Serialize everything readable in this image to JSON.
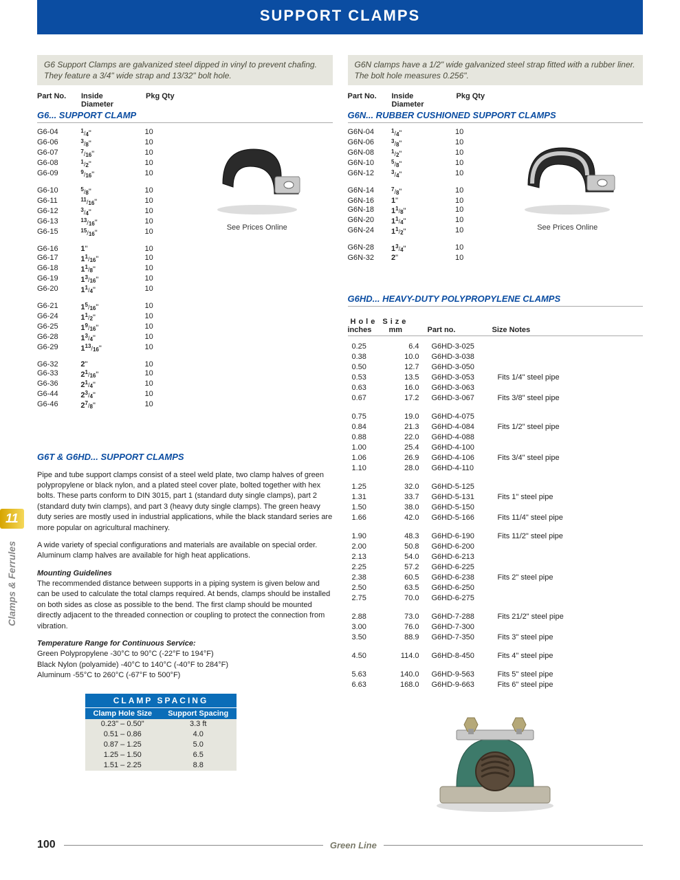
{
  "header": {
    "title": "SUPPORT CLAMPS"
  },
  "left": {
    "intro": "G6 Support Clamps are galvanized steel dipped in vinyl to prevent chafing. They feature a 3/4\" wide strap and 13/32\" bolt hole.",
    "headers": {
      "part": "Part No.",
      "diam_top": "Inside",
      "diam_bot": "Diameter",
      "qty": "Pkg Qty"
    },
    "section": "G6... SUPPORT CLAMP",
    "see_prices": "See Prices Online",
    "rows": [
      [
        {
          "part": "G6-04",
          "diam": {
            "w": "",
            "n": "1",
            "d": "4",
            "suf": "\""
          },
          "qty": "10"
        },
        {
          "part": "G6-06",
          "diam": {
            "w": "",
            "n": "3",
            "d": "8",
            "suf": "\""
          },
          "qty": "10"
        },
        {
          "part": "G6-07",
          "diam": {
            "w": "",
            "n": "7",
            "d": "16",
            "suf": "\""
          },
          "qty": "10"
        },
        {
          "part": "G6-08",
          "diam": {
            "w": "",
            "n": "1",
            "d": "2",
            "suf": "\""
          },
          "qty": "10"
        },
        {
          "part": "G6-09",
          "diam": {
            "w": "",
            "n": "9",
            "d": "16",
            "suf": "\""
          },
          "qty": "10"
        }
      ],
      [
        {
          "part": "G6-10",
          "diam": {
            "w": "",
            "n": "5",
            "d": "8",
            "suf": "\""
          },
          "qty": "10"
        },
        {
          "part": "G6-11",
          "diam": {
            "w": "",
            "n": "11",
            "d": "16",
            "suf": "\""
          },
          "qty": "10"
        },
        {
          "part": "G6-12",
          "diam": {
            "w": "",
            "n": "3",
            "d": "4",
            "suf": "\""
          },
          "qty": "10"
        },
        {
          "part": "G6-13",
          "diam": {
            "w": "",
            "n": "13",
            "d": "16",
            "suf": "\""
          },
          "qty": "10"
        },
        {
          "part": "G6-15",
          "diam": {
            "w": "",
            "n": "15",
            "d": "16",
            "suf": "\""
          },
          "qty": "10"
        }
      ],
      [
        {
          "part": "G6-16",
          "diam": {
            "w": "1",
            "n": "",
            "d": "",
            "suf": "\""
          },
          "qty": "10"
        },
        {
          "part": "G6-17",
          "diam": {
            "w": "1",
            "n": "1",
            "d": "16",
            "suf": "\""
          },
          "qty": "10"
        },
        {
          "part": "G6-18",
          "diam": {
            "w": "1",
            "n": "1",
            "d": "8",
            "suf": "\""
          },
          "qty": "10"
        },
        {
          "part": "G6-19",
          "diam": {
            "w": "1",
            "n": "3",
            "d": "16",
            "suf": "\""
          },
          "qty": "10"
        },
        {
          "part": "G6-20",
          "diam": {
            "w": "1",
            "n": "1",
            "d": "4",
            "suf": "\""
          },
          "qty": "10"
        }
      ],
      [
        {
          "part": "G6-21",
          "diam": {
            "w": "1",
            "n": "5",
            "d": "16",
            "suf": "\""
          },
          "qty": "10"
        },
        {
          "part": "G6-24",
          "diam": {
            "w": "1",
            "n": "1",
            "d": "2",
            "suf": "\""
          },
          "qty": "10"
        },
        {
          "part": "G6-25",
          "diam": {
            "w": "1",
            "n": "9",
            "d": "16",
            "suf": "\""
          },
          "qty": "10"
        },
        {
          "part": "G6-28",
          "diam": {
            "w": "1",
            "n": "3",
            "d": "4",
            "suf": "\""
          },
          "qty": "10"
        },
        {
          "part": "G6-29",
          "diam": {
            "w": "1",
            "n": "13",
            "d": "16",
            "suf": "\""
          },
          "qty": "10"
        }
      ],
      [
        {
          "part": "G6-32",
          "diam": {
            "w": "2",
            "n": "",
            "d": "",
            "suf": "\""
          },
          "qty": "10"
        },
        {
          "part": "G6-33",
          "diam": {
            "w": "2",
            "n": "1",
            "d": "16",
            "suf": "\""
          },
          "qty": "10"
        },
        {
          "part": "G6-36",
          "diam": {
            "w": "2",
            "n": "1",
            "d": "4",
            "suf": "\""
          },
          "qty": "10"
        },
        {
          "part": "G6-44",
          "diam": {
            "w": "2",
            "n": "3",
            "d": "4",
            "suf": "\""
          },
          "qty": "10"
        },
        {
          "part": "G6-46",
          "diam": {
            "w": "2",
            "n": "7",
            "d": "8",
            "suf": "\""
          },
          "qty": "10"
        }
      ]
    ],
    "article": {
      "title": "G6T & G6HD... SUPPORT CLAMPS",
      "p1": "Pipe and tube support clamps consist of a steel weld plate, two clamp halves of green polypropylene or black nylon, and a plated steel cover plate, bolted together with hex bolts. These parts conform to DIN 3015, part 1 (standard duty single clamps), part 2 (standard duty twin clamps), and part 3 (heavy duty single clamps). The green heavy duty series are mostly used in industrial applications, while the black standard series are more popular on agricultural machinery.",
      "p2": "A wide variety of special configurations and materials are available on special order. Aluminum clamp halves are available for high heat applications.",
      "mg_title": "Mounting Guidelines",
      "p3": "The recommended distance between supports in a piping system is given below and can be used to calculate the total clamps required. At bends, clamps should be installed on both sides as close as possible to the bend. The first clamp should be mounted directly adjacent to the threaded connection or coupling to protect the connection from vibration.",
      "tr_title": "Temperature Range for Continuous Service:",
      "tr1": "Green Polypropylene -30°C to 90°C (-22°F to 194°F)",
      "tr2": "Black Nylon (polyamide) -40°C to 140°C (-40°F to 284°F)",
      "tr3": "Aluminum -55°C to 260°C (-67°F to 500°F)"
    },
    "spacing": {
      "title": "CLAMP SPACING",
      "h1": "Clamp Hole Size",
      "h2": "Support Spacing",
      "rows": [
        {
          "a": "0.23\" – 0.50\"",
          "b": "3.3 ft"
        },
        {
          "a": "0.51  – 0.86",
          "b": "4.0"
        },
        {
          "a": "0.87  – 1.25",
          "b": "5.0"
        },
        {
          "a": "1.25  – 1.50",
          "b": "6.5"
        },
        {
          "a": "1.51  – 2.25",
          "b": "8.8"
        }
      ]
    }
  },
  "right": {
    "intro": "G6N clamps have a 1/2\" wide galvanized steel strap fitted with a rubber liner. The bolt hole measures 0.256\".",
    "headers": {
      "part": "Part No.",
      "diam_top": "Inside",
      "diam_bot": "Diameter",
      "qty": "Pkg Qty"
    },
    "section": "G6N... RUBBER CUSHIONED SUPPORT CLAMPS",
    "see_prices": "See Prices Online",
    "rows": [
      [
        {
          "part": "G6N-04",
          "diam": {
            "w": "",
            "n": "1",
            "d": "4",
            "suf": "\""
          },
          "qty": "10"
        },
        {
          "part": "G6N-06",
          "diam": {
            "w": "",
            "n": "3",
            "d": "8",
            "suf": "\""
          },
          "qty": "10"
        },
        {
          "part": "G6N-08",
          "diam": {
            "w": "",
            "n": "1",
            "d": "2",
            "suf": "\""
          },
          "qty": "10"
        },
        {
          "part": "G6N-10",
          "diam": {
            "w": "",
            "n": "5",
            "d": "8",
            "suf": "\""
          },
          "qty": "10"
        },
        {
          "part": "G6N-12",
          "diam": {
            "w": "",
            "n": "3",
            "d": "4",
            "suf": "\""
          },
          "qty": "10"
        }
      ],
      [
        {
          "part": "G6N-14",
          "diam": {
            "w": "",
            "n": "7",
            "d": "8",
            "suf": "\""
          },
          "qty": "10"
        },
        {
          "part": "G6N-16",
          "diam": {
            "w": "1",
            "n": "",
            "d": "",
            "suf": "\""
          },
          "qty": "10"
        },
        {
          "part": "G6N-18",
          "diam": {
            "w": "1",
            "n": "1",
            "d": "8",
            "suf": "\""
          },
          "qty": "10"
        },
        {
          "part": "G6N-20",
          "diam": {
            "w": "1",
            "n": "1",
            "d": "4",
            "suf": "\""
          },
          "qty": "10"
        },
        {
          "part": "G6N-24",
          "diam": {
            "w": "1",
            "n": "1",
            "d": "2",
            "suf": "\""
          },
          "qty": "10"
        }
      ],
      [
        {
          "part": "G6N-28",
          "diam": {
            "w": "1",
            "n": "3",
            "d": "4",
            "suf": "\""
          },
          "qty": "10"
        },
        {
          "part": "G6N-32",
          "diam": {
            "w": "2",
            "n": "",
            "d": "",
            "suf": "\""
          },
          "qty": "10"
        }
      ]
    ],
    "hd_section": "G6HD... HEAVY-DUTY POLYPROPYLENE  CLAMPS",
    "hd_headers": {
      "top": "Hole Size",
      "in": "inches",
      "mm": "mm",
      "part": "Part no.",
      "notes": "Size Notes"
    },
    "hd_rows": [
      [
        {
          "in": "0.25",
          "mm": "6.4",
          "part": "G6HD-3-025",
          "note": ""
        },
        {
          "in": "0.38",
          "mm": "10.0",
          "part": "G6HD-3-038",
          "note": ""
        },
        {
          "in": "0.50",
          "mm": "12.7",
          "part": "G6HD-3-050",
          "note": ""
        },
        {
          "in": "0.53",
          "mm": "13.5",
          "part": "G6HD-3-053",
          "note": "Fits 1/4\" steel pipe"
        },
        {
          "in": "0.63",
          "mm": "16.0",
          "part": "G6HD-3-063",
          "note": ""
        },
        {
          "in": "0.67",
          "mm": "17.2",
          "part": "G6HD-3-067",
          "note": "Fits 3/8\" steel pipe"
        }
      ],
      [
        {
          "in": "0.75",
          "mm": "19.0",
          "part": "G6HD-4-075",
          "note": ""
        },
        {
          "in": "0.84",
          "mm": "21.3",
          "part": "G6HD-4-084",
          "note": "Fits 1/2\" steel pipe"
        },
        {
          "in": "0.88",
          "mm": "22.0",
          "part": "G6HD-4-088",
          "note": ""
        },
        {
          "in": "1.00",
          "mm": "25.4",
          "part": "G6HD-4-100",
          "note": ""
        },
        {
          "in": "1.06",
          "mm": "26.9",
          "part": "G6HD-4-106",
          "note": "Fits 3/4\" steel pipe"
        },
        {
          "in": "1.10",
          "mm": "28.0",
          "part": "G6HD-4-110",
          "note": ""
        }
      ],
      [
        {
          "in": "1.25",
          "mm": "32.0",
          "part": "G6HD-5-125",
          "note": ""
        },
        {
          "in": "1.31",
          "mm": "33.7",
          "part": "G6HD-5-131",
          "note": "Fits 1\" steel pipe"
        },
        {
          "in": "1.50",
          "mm": "38.0",
          "part": "G6HD-5-150",
          "note": ""
        },
        {
          "in": "1.66",
          "mm": "42.0",
          "part": "G6HD-5-166",
          "note": "Fits 11/4\" steel pipe"
        }
      ],
      [
        {
          "in": "1.90",
          "mm": "48.3",
          "part": "G6HD-6-190",
          "note": "Fits 11/2\" steel pipe"
        },
        {
          "in": "2.00",
          "mm": "50.8",
          "part": "G6HD-6-200",
          "note": ""
        },
        {
          "in": "2.13",
          "mm": "54.0",
          "part": "G6HD-6-213",
          "note": ""
        },
        {
          "in": "2.25",
          "mm": "57.2",
          "part": "G6HD-6-225",
          "note": ""
        },
        {
          "in": "2.38",
          "mm": "60.5",
          "part": "G6HD-6-238",
          "note": "Fits 2\" steel pipe"
        },
        {
          "in": "2.50",
          "mm": "63.5",
          "part": "G6HD-6-250",
          "note": ""
        },
        {
          "in": "2.75",
          "mm": "70.0",
          "part": "G6HD-6-275",
          "note": ""
        }
      ],
      [
        {
          "in": "2.88",
          "mm": "73.0",
          "part": "G6HD-7-288",
          "note": "Fits 21/2\" steel pipe"
        },
        {
          "in": "3.00",
          "mm": "76.0",
          "part": "G6HD-7-300",
          "note": ""
        },
        {
          "in": "3.50",
          "mm": "88.9",
          "part": "G6HD-7-350",
          "note": "Fits 3\" steel pipe"
        }
      ],
      [
        {
          "in": "4.50",
          "mm": "114.0",
          "part": "G6HD-8-450",
          "note": "Fits 4\" steel pipe"
        }
      ],
      [
        {
          "in": "5.63",
          "mm": "140.0",
          "part": "G6HD-9-563",
          "note": "Fits 5\" steel pipe"
        },
        {
          "in": "6.63",
          "mm": "168.0",
          "part": "G6HD-9-663",
          "note": "Fits 6\" steel pipe"
        }
      ]
    ]
  },
  "side": {
    "num": "11",
    "label": "Clamps & Ferrules"
  },
  "footer": {
    "page": "100",
    "brand": "Green Line"
  },
  "colors": {
    "banner": "#0b4da2",
    "section": "#0b4da2",
    "spacing_bg": "#0b6db8",
    "intro_bg": "#e6e6de",
    "side_tab": "#d6a400",
    "brand": "#7a7a6a"
  }
}
